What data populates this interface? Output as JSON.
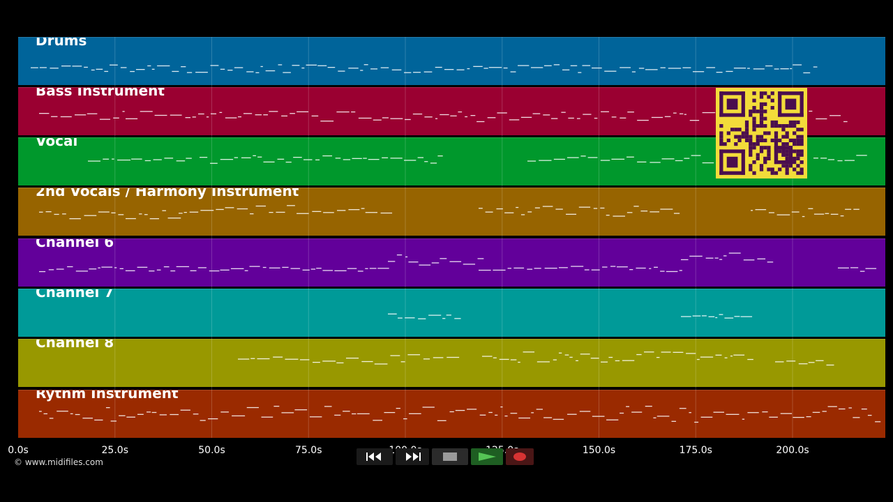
{
  "app": {
    "copyright": "© www.midifiles.com"
  },
  "timeline": {
    "ticks": [
      "0.0s",
      "25.0s",
      "50.0s",
      "75.0s",
      "100.0s",
      "125.0s",
      "150.0s",
      "175.0s",
      "200.0s"
    ],
    "tick_seconds": [
      0,
      25,
      50,
      75,
      100,
      125,
      150,
      175,
      200
    ]
  },
  "tracks": [
    {
      "name": "Drums",
      "color": "#00649a"
    },
    {
      "name": "Bass Instrument",
      "color": "#9a0031"
    },
    {
      "name": "Vocal",
      "color": "#00982c"
    },
    {
      "name": "2nd Vocals / Harmony Instrument",
      "color": "#976400"
    },
    {
      "name": "Channel 6",
      "color": "#62009a"
    },
    {
      "name": "Channel 7",
      "color": "#009a98"
    },
    {
      "name": "Channel 8",
      "color": "#989800"
    },
    {
      "name": "Rythm Instrument",
      "color": "#9a2a00"
    }
  ],
  "transport": {
    "rewind_icon": "rewind-icon",
    "fast_forward_icon": "fast-forward-icon",
    "stop_icon": "stop-icon",
    "play_icon": "play-icon",
    "record_icon": "record-icon",
    "play_color": "#55c455",
    "record_color": "#d63333"
  },
  "qr": {
    "icon": "qr-code-icon",
    "foreground": "#4a0e4e",
    "background": "#f3dc3a"
  }
}
